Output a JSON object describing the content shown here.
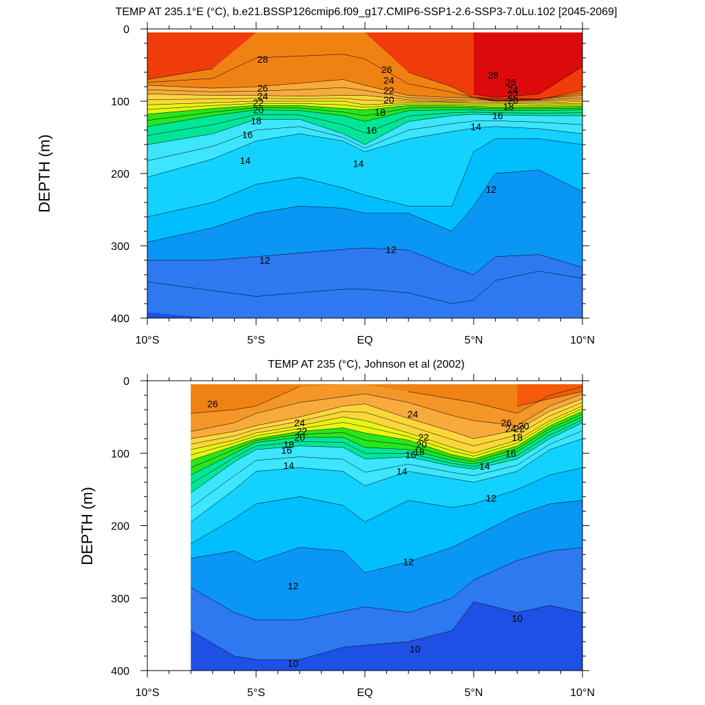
{
  "chart_data": [
    {
      "type": "contour",
      "title": "TEMP AT 235.1°E (°C), b.e21.BSSP126cmip6.f09_g17.CMIP6-SSP1-2.6-SSP3-7.0Lu.102 [2045-2069]",
      "xlabel": "",
      "ylabel": "DEPTH (m)",
      "xlim": [
        -10,
        10
      ],
      "ylim": [
        400,
        0
      ],
      "x_ticks": [
        -10,
        -5,
        0,
        5,
        10
      ],
      "x_tick_labels": [
        "10°S",
        "5°S",
        "EQ",
        "5°N",
        "10°N"
      ],
      "y_ticks": [
        0,
        100,
        200,
        300,
        400
      ],
      "y_tick_labels": [
        "0",
        "100",
        "200",
        "300",
        "400"
      ],
      "contour_interval": 1,
      "levels": [
        10,
        11,
        12,
        13,
        14,
        15,
        16,
        17,
        18,
        19,
        20,
        21,
        22,
        23,
        24,
        25,
        26,
        27,
        28,
        29
      ],
      "x": [
        -10,
        -7,
        -5,
        -3,
        -1,
        0,
        2,
        4,
        5,
        6,
        8,
        10
      ],
      "isotherm_depths": [
        {
          "t": 29,
          "depth": [
            null,
            null,
            null,
            null,
            null,
            null,
            null,
            null,
            90,
            95,
            90,
            52
          ]
        },
        {
          "t": 28,
          "depth": [
            70,
            55,
            0,
            0,
            0,
            5,
            60,
            80,
            95,
            100,
            98,
            85
          ]
        },
        {
          "t": 26,
          "depth": [
            78,
            82,
            80,
            75,
            70,
            78,
            92,
            95,
            95,
            97,
            97,
            92
          ]
        },
        {
          "t": 24,
          "depth": [
            90,
            92,
            92,
            93,
            92,
            92,
            98,
            100,
            99,
            100,
            100,
            98
          ]
        },
        {
          "t": 22,
          "depth": [
            105,
            102,
            100,
            100,
            100,
            105,
            102,
            102,
            103,
            103,
            104,
            103
          ]
        },
        {
          "t": 20,
          "depth": [
            118,
            110,
            106,
            106,
            110,
            112,
            106,
            106,
            107,
            108,
            108,
            107
          ]
        },
        {
          "t": 18,
          "depth": [
            135,
            120,
            112,
            113,
            120,
            128,
            113,
            112,
            112,
            113,
            113,
            112
          ]
        },
        {
          "t": 16,
          "depth": [
            160,
            145,
            125,
            125,
            145,
            160,
            128,
            120,
            118,
            119,
            120,
            120
          ]
        },
        {
          "t": 14,
          "depth": [
            205,
            180,
            155,
            145,
            155,
            170,
            152,
            142,
            137,
            135,
            138,
            145
          ]
        },
        {
          "t": 13,
          "depth": [
            260,
            240,
            215,
            205,
            220,
            230,
            245,
            245,
            170,
            152,
            152,
            160
          ]
        },
        {
          "t": 12,
          "depth": [
            295,
            275,
            255,
            245,
            248,
            255,
            255,
            280,
            245,
            200,
            195,
            225
          ]
        },
        {
          "t": 11,
          "depth": [
            320,
            320,
            315,
            310,
            305,
            303,
            306,
            330,
            340,
            315,
            312,
            330
          ]
        },
        {
          "t": 10,
          "depth": [
            350,
            362,
            370,
            365,
            360,
            360,
            365,
            380,
            375,
            348,
            335,
            345
          ]
        }
      ],
      "min_temp_region": {
        "t": 9,
        "depth": [
          392,
          400,
          null,
          null,
          null,
          null,
          null,
          null,
          null,
          null,
          null,
          null
        ]
      },
      "contour_labels": [
        {
          "text": "28",
          "x": -4.7,
          "depth": 42
        },
        {
          "text": "26",
          "x": -4.7,
          "depth": 82
        },
        {
          "text": "24",
          "x": -4.7,
          "depth": 93
        },
        {
          "text": "22",
          "x": -4.9,
          "depth": 102
        },
        {
          "text": "20",
          "x": -4.9,
          "depth": 112
        },
        {
          "text": "18",
          "x": -5.0,
          "depth": 127
        },
        {
          "text": "16",
          "x": -5.4,
          "depth": 146
        },
        {
          "text": "14",
          "x": -5.5,
          "depth": 182
        },
        {
          "text": "12",
          "x": -4.6,
          "depth": 320
        },
        {
          "text": "26",
          "x": 1.0,
          "depth": 56
        },
        {
          "text": "24",
          "x": 1.1,
          "depth": 71
        },
        {
          "text": "22",
          "x": 1.1,
          "depth": 85
        },
        {
          "text": "20",
          "x": 1.1,
          "depth": 98
        },
        {
          "text": "18",
          "x": 0.7,
          "depth": 115
        },
        {
          "text": "16",
          "x": 0.3,
          "depth": 140
        },
        {
          "text": "14",
          "x": -0.3,
          "depth": 186
        },
        {
          "text": "12",
          "x": 1.2,
          "depth": 305
        },
        {
          "text": "14",
          "x": 5.1,
          "depth": 135
        },
        {
          "text": "16",
          "x": 6.1,
          "depth": 120
        },
        {
          "text": "18",
          "x": 6.6,
          "depth": 107
        },
        {
          "text": "20",
          "x": 6.8,
          "depth": 99
        },
        {
          "text": "22",
          "x": 6.8,
          "depth": 91
        },
        {
          "text": "24",
          "x": 6.8,
          "depth": 84
        },
        {
          "text": "26",
          "x": 6.7,
          "depth": 74
        },
        {
          "text": "28",
          "x": 5.9,
          "depth": 64
        },
        {
          "text": "12",
          "x": 5.8,
          "depth": 222
        }
      ]
    },
    {
      "type": "contour",
      "title": "TEMP AT 235 (°C), Johnson et al (2002)",
      "xlabel": "",
      "ylabel": "DEPTH (m)",
      "xlim": [
        -10,
        10
      ],
      "ylim": [
        400,
        0
      ],
      "data_xlim": [
        -8,
        10
      ],
      "x_ticks": [
        -10,
        -5,
        0,
        5,
        10
      ],
      "x_tick_labels": [
        "10°S",
        "5°S",
        "EQ",
        "5°N",
        "10°N"
      ],
      "y_ticks": [
        0,
        100,
        200,
        300,
        400
      ],
      "y_tick_labels": [
        "0",
        "100",
        "200",
        "300",
        "400"
      ],
      "contour_interval": 1,
      "levels": [
        10,
        11,
        12,
        13,
        14,
        15,
        16,
        17,
        18,
        19,
        20,
        21,
        22,
        23,
        24,
        25,
        26,
        27
      ],
      "x": [
        -8,
        -6,
        -5,
        -3,
        -1,
        0,
        2,
        4,
        5,
        7,
        8.5,
        10
      ],
      "isotherm_depths": [
        {
          "t": 27,
          "depth": [
            null,
            null,
            null,
            null,
            null,
            null,
            null,
            null,
            null,
            35,
            25,
            15
          ]
        },
        {
          "t": 26,
          "depth": [
            45,
            40,
            35,
            8,
            3,
            0,
            15,
            25,
            30,
            45,
            20,
            8
          ]
        },
        {
          "t": 25,
          "depth": [
            70,
            58,
            45,
            30,
            22,
            18,
            30,
            48,
            55,
            62,
            35,
            18
          ]
        },
        {
          "t": 24,
          "depth": [
            80,
            70,
            62,
            50,
            35,
            32,
            52,
            70,
            80,
            68,
            42,
            25
          ]
        },
        {
          "t": 22,
          "depth": [
            95,
            82,
            72,
            62,
            50,
            55,
            72,
            92,
            100,
            82,
            55,
            35
          ]
        },
        {
          "t": 20,
          "depth": [
            110,
            90,
            80,
            70,
            65,
            72,
            82,
            102,
            108,
            90,
            62,
            42
          ]
        },
        {
          "t": 18,
          "depth": [
            130,
            100,
            85,
            78,
            78,
            92,
            95,
            110,
            115,
            98,
            70,
            50
          ]
        },
        {
          "t": 16,
          "depth": [
            155,
            112,
            95,
            90,
            92,
            108,
            105,
            118,
            122,
            108,
            80,
            58
          ]
        },
        {
          "t": 14,
          "depth": [
            195,
            150,
            125,
            120,
            125,
            145,
            125,
            135,
            140,
            125,
            95,
            80
          ]
        },
        {
          "t": 13,
          "depth": [
            225,
            190,
            170,
            160,
            172,
            195,
            165,
            175,
            170,
            150,
            130,
            120
          ]
        },
        {
          "t": 12,
          "depth": [
            245,
            235,
            250,
            230,
            235,
            265,
            250,
            230,
            215,
            185,
            170,
            165
          ]
        },
        {
          "t": 11,
          "depth": [
            285,
            320,
            330,
            330,
            318,
            312,
            320,
            300,
            275,
            248,
            235,
            230
          ]
        },
        {
          "t": 10,
          "depth": [
            345,
            380,
            385,
            385,
            368,
            365,
            360,
            345,
            305,
            320,
            310,
            320
          ]
        }
      ],
      "contour_labels": [
        {
          "text": "26",
          "x": -7.0,
          "depth": 32
        },
        {
          "text": "24",
          "x": -3.0,
          "depth": 58
        },
        {
          "text": "22",
          "x": -2.9,
          "depth": 70
        },
        {
          "text": "20",
          "x": -3.0,
          "depth": 78
        },
        {
          "text": "18",
          "x": -3.5,
          "depth": 88
        },
        {
          "text": "16",
          "x": -3.6,
          "depth": 96
        },
        {
          "text": "14",
          "x": -3.5,
          "depth": 117
        },
        {
          "text": "12",
          "x": -3.3,
          "depth": 283
        },
        {
          "text": "10",
          "x": -3.3,
          "depth": 390
        },
        {
          "text": "24",
          "x": 2.2,
          "depth": 46
        },
        {
          "text": "22",
          "x": 2.7,
          "depth": 78
        },
        {
          "text": "20",
          "x": 2.6,
          "depth": 88
        },
        {
          "text": "18",
          "x": 2.5,
          "depth": 98
        },
        {
          "text": "16",
          "x": 2.1,
          "depth": 102
        },
        {
          "text": "14",
          "x": 1.7,
          "depth": 125
        },
        {
          "text": "12",
          "x": 2.0,
          "depth": 250
        },
        {
          "text": "10",
          "x": 2.3,
          "depth": 370
        },
        {
          "text": "26",
          "x": 6.5,
          "depth": 58
        },
        {
          "text": "24",
          "x": 6.7,
          "depth": 66
        },
        {
          "text": "22",
          "x": 7.1,
          "depth": 66
        },
        {
          "text": "20",
          "x": 7.3,
          "depth": 62
        },
        {
          "text": "18",
          "x": 7.0,
          "depth": 78
        },
        {
          "text": "16",
          "x": 6.7,
          "depth": 100
        },
        {
          "text": "14",
          "x": 5.5,
          "depth": 118
        },
        {
          "text": "12",
          "x": 5.8,
          "depth": 162
        },
        {
          "text": "10",
          "x": 7.0,
          "depth": 328
        }
      ]
    }
  ],
  "colors": {
    "shading": [
      {
        "t": 9,
        "color": "#1E50E6"
      },
      {
        "t": 10,
        "color": "#2E78F0"
      },
      {
        "t": 11,
        "color": "#0A96F5"
      },
      {
        "t": 12,
        "color": "#00BEFF"
      },
      {
        "t": 13,
        "color": "#14D2FF"
      },
      {
        "t": 14,
        "color": "#3CE6FF"
      },
      {
        "t": 15,
        "color": "#28F0E6"
      },
      {
        "t": 16,
        "color": "#00E696"
      },
      {
        "t": 17,
        "color": "#00D250"
      },
      {
        "t": 18,
        "color": "#28E61E"
      },
      {
        "t": 19,
        "color": "#96F01E"
      },
      {
        "t": 20,
        "color": "#E6F514"
      },
      {
        "t": 21,
        "color": "#FAEB1E"
      },
      {
        "t": 22,
        "color": "#FCD73C"
      },
      {
        "t": 23,
        "color": "#FAC35A"
      },
      {
        "t": 24,
        "color": "#F8AA3C"
      },
      {
        "t": 25,
        "color": "#F59628"
      },
      {
        "t": 26,
        "color": "#F08214"
      },
      {
        "t": 27,
        "color": "#F55A0A"
      },
      {
        "t": 28,
        "color": "#F03C0A"
      },
      {
        "t": 29,
        "color": "#DC0A0A"
      }
    ],
    "contour_line": "#000000",
    "axis": "#000000",
    "background": "#ffffff"
  }
}
